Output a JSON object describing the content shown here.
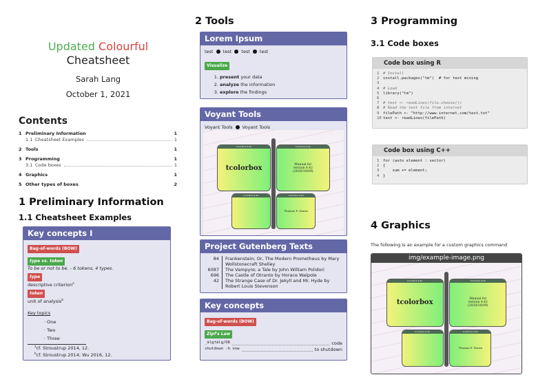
{
  "title": {
    "word1": "Updated",
    "word2": "Colourful",
    "line2": "Cheatsheet",
    "author": "Sarah Lang",
    "date": "October 1, 2021",
    "color1": "#4caf50",
    "color2": "#d9433f"
  },
  "toc": {
    "heading": "Contents",
    "entries": [
      {
        "num": "1",
        "label": "Preliminary Information",
        "page": "1"
      },
      {
        "num": "1.1",
        "label": "Cheatsheet Examples",
        "page": "1"
      },
      {
        "num": "2",
        "label": "Tools",
        "page": "1"
      },
      {
        "num": "3",
        "label": "Programming",
        "page": "1"
      },
      {
        "num": "3.1",
        "label": "Code boxes",
        "page": "1"
      },
      {
        "num": "4",
        "label": "Graphics",
        "page": "1"
      },
      {
        "num": "5",
        "label": "Other types of boxes",
        "page": "2"
      }
    ]
  },
  "sections": {
    "s1": "1   Preliminary Information",
    "s11": "1.1   Cheatsheet Examples",
    "s2": "2   Tools",
    "s3": "3   Programming",
    "s31": "3.1   Code boxes",
    "s4": "4   Graphics"
  },
  "key1": {
    "title": "Key concepts I",
    "bow": "Bag-of-words (BOW)",
    "tvt": "type vs. token",
    "tvt_text": "To be or not to be. - 6 tokens, 4 types.",
    "type": "type",
    "type_text": "descriptive criterion",
    "type_fn": "a",
    "token": "token",
    "token_text": "unit of analysis",
    "token_fn": "b",
    "topics_label": "Key topics",
    "topics": [
      "One",
      "Two",
      "Three"
    ],
    "fn_a": "cf. Stroustrup 2014, 12.",
    "fn_b": "cf. Stroustrup 2014; Wu 2016, 12."
  },
  "lorem": {
    "title": "Lorem Ipsum",
    "items": [
      "test",
      "test",
      "test",
      "test"
    ],
    "tag": "Visualize",
    "list": [
      {
        "b": "present",
        "t": " your data"
      },
      {
        "b": "analyze",
        "t": " the information"
      },
      {
        "b": "explore",
        "t": " the findings"
      }
    ]
  },
  "voyant": {
    "title": "Voyant Tools",
    "items": [
      "Voyant Tools",
      "Voyant Tools"
    ]
  },
  "illustration": {
    "name": "tcolorbox",
    "manual": "Manual for version 4.42 (2020/10/09)",
    "author": "Thomas F. Sturm",
    "wing_label": "tcolorbox 4.42"
  },
  "gutenberg": {
    "title": "Project Gutenberg Texts",
    "rows": [
      {
        "id": "84",
        "text": "Frankenstein; Or, The Modern Prometheus by Mary Wollstonecraft Shelley"
      },
      {
        "id": "6087",
        "text": "The Vampyre; a Tale by John William Polidori"
      },
      {
        "id": "696",
        "text": "The Castle of Otranto by Horace Walpole"
      },
      {
        "id": "42",
        "text": "The Strange Case of Dr. Jekyll and Mr. Hyde by Robert Louis Stevenson"
      }
    ]
  },
  "key2": {
    "title": "Key concepts",
    "bow": "Bag-of-words (BOW)",
    "zipf": "Zipf's Law",
    "rows": [
      {
        "k": "_àlg†àlg/Oß",
        "v": "code"
      },
      {
        "k": "shutdown -h now",
        "v": "to shutdown"
      }
    ]
  },
  "code_r": {
    "title": "Code box using R",
    "lines": [
      "# Install",
      "install.packages(\"tm\")  # for text mining",
      "",
      "# Load",
      "library(\"tm\")",
      "",
      "# text <- readLines(file.choose())",
      "# Read the text file from internet",
      "filePath <- \"http://www.internet.com/text.txt\"",
      "text <- readLines(filePath)"
    ]
  },
  "code_cpp": {
    "title": "Code box using C++",
    "lines": [
      "for (auto element : vector)",
      "{",
      "    sum += element;",
      "}"
    ]
  },
  "graphics": {
    "intro": "The following is an example for a custom graphics command",
    "caption": "img/example-image.png"
  }
}
